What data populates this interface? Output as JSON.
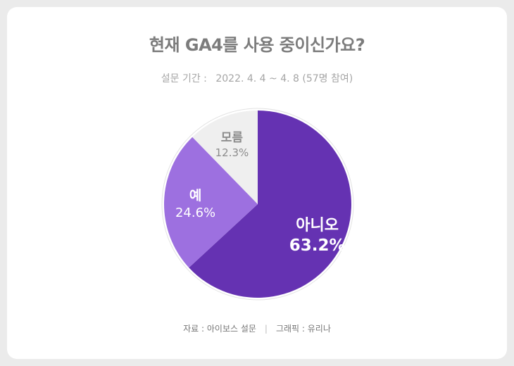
{
  "title": "현재 GA4를 사용 중이신가요?",
  "subtitle": {
    "label": "설문 기간 :",
    "period": "2022. 4. 4 ~ 4. 8",
    "participants": "(57명 참여)"
  },
  "source": {
    "data_source": "자료 : 아이보스 설문",
    "separator": "|",
    "graphic": "그래픽 : 유리나"
  },
  "chart_data": {
    "type": "pie",
    "title": "현재 GA4를 사용 중이신가요?",
    "slices": [
      {
        "label": "아니오",
        "value": 63.2,
        "display": "63.2%",
        "color": "#6532b2"
      },
      {
        "label": "예",
        "value": 24.6,
        "display": "24.6%",
        "color": "#9d70e0"
      },
      {
        "label": "모름",
        "value": 12.3,
        "display": "12.3%",
        "color": "#efefef"
      }
    ],
    "start_angle_deg": 0,
    "direction": "clockwise"
  }
}
